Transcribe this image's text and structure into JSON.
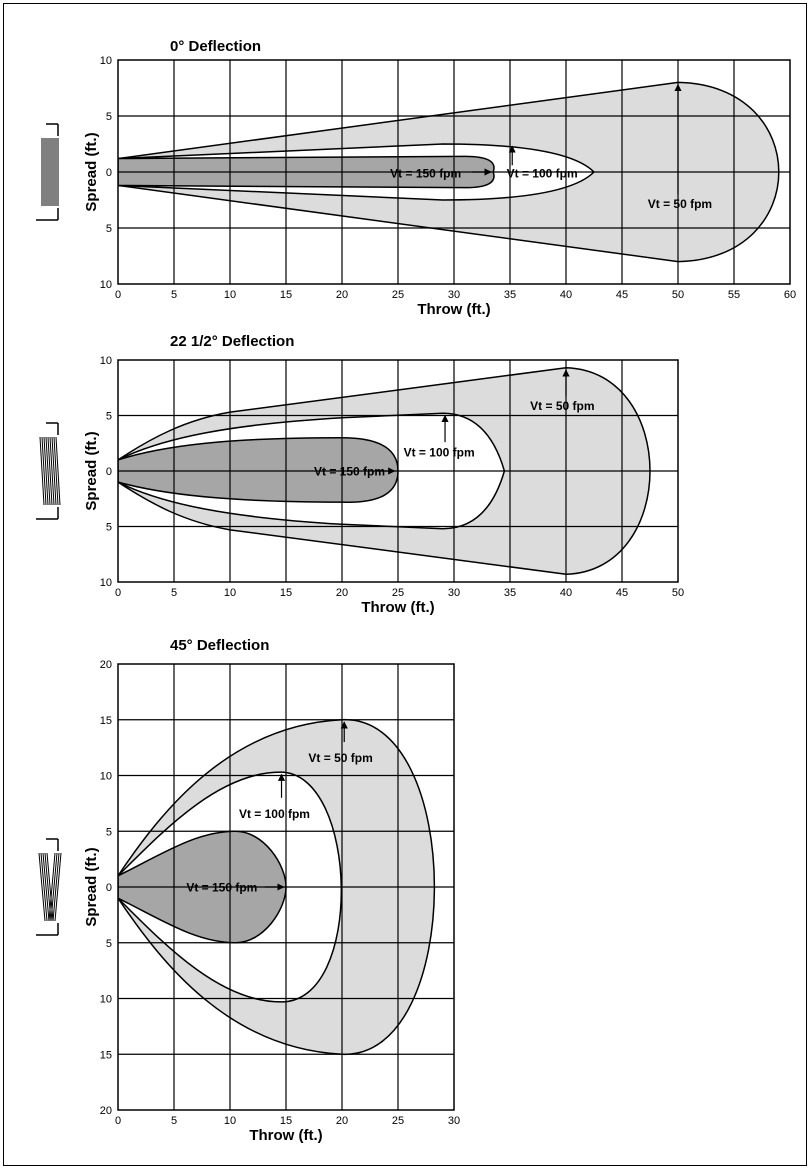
{
  "chart_data": [
    {
      "type": "area",
      "title": "0° Deflection",
      "xlabel": "Throw (ft.)",
      "ylabel": "Spread (ft.)",
      "x_ticks": [
        "0",
        "5",
        "10",
        "15",
        "20",
        "25",
        "30",
        "35",
        "40",
        "45",
        "50",
        "55",
        "60"
      ],
      "y_ticks": [
        "10",
        "5",
        "0",
        "5",
        "10"
      ],
      "xlim": [
        0,
        60
      ],
      "ylim": [
        -10,
        10
      ],
      "grid": true,
      "colors": {
        "v50": "#dcdcdc",
        "v100": "#ffffff",
        "v150": "#a6a6a6"
      },
      "series": [
        {
          "label": "Vt = 50 fpm",
          "max_throw": 60,
          "max_spread": 8
        },
        {
          "label": "Vt = 100 fpm",
          "max_throw": 42.5,
          "max_spread": 2.5
        },
        {
          "label": "Vt = 150 fpm",
          "max_throw": 33.5,
          "max_spread": 1.4
        }
      ]
    },
    {
      "type": "area",
      "title": "22 1/2° Deflection",
      "xlabel": "Throw (ft.)",
      "ylabel": "Spread (ft.)",
      "x_ticks": [
        "0",
        "5",
        "10",
        "15",
        "20",
        "25",
        "30",
        "35",
        "40",
        "45",
        "50"
      ],
      "y_ticks": [
        "10",
        "5",
        "0",
        "5",
        "10"
      ],
      "xlim": [
        0,
        50
      ],
      "ylim": [
        -10,
        10
      ],
      "grid": true,
      "series": [
        {
          "label": "Vt = 50 fpm",
          "max_throw": 48,
          "max_spread": 9.3
        },
        {
          "label": "Vt = 100 fpm",
          "max_throw": 34.5,
          "max_spread": 5.2
        },
        {
          "label": "Vt = 150 fpm",
          "max_throw": 25,
          "max_spread": 3
        }
      ]
    },
    {
      "type": "area",
      "title": "45° Deflection",
      "xlabel": "Throw (ft.)",
      "ylabel": "Spread (ft.)",
      "x_ticks": [
        "0",
        "5",
        "10",
        "15",
        "20",
        "25",
        "30"
      ],
      "y_ticks": [
        "20",
        "15",
        "10",
        "5",
        "0",
        "5",
        "10",
        "15",
        "20"
      ],
      "xlim": [
        0,
        30
      ],
      "ylim": [
        -20,
        20
      ],
      "grid": true,
      "series": [
        {
          "label": "Vt = 50 fpm",
          "max_throw": 30,
          "max_spread": 15
        },
        {
          "label": "Vt = 100 fpm",
          "max_throw": 21,
          "max_spread": 10.3
        },
        {
          "label": "Vt = 150 fpm",
          "max_throw": 15,
          "max_spread": 5
        }
      ]
    }
  ]
}
